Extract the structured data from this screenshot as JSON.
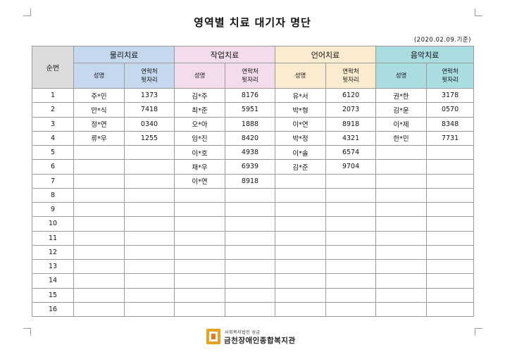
{
  "title": "영역별 치료 대기자 명단",
  "date": "(2020.02.09.기준)",
  "table": {
    "num_header": "순번",
    "categories": [
      {
        "label": "물리치료",
        "color": "#c5d8ee",
        "sub": [
          "성명",
          "연락처\n뒷자리"
        ]
      },
      {
        "label": "작업치료",
        "color": "#f3dcec",
        "sub": [
          "성명",
          "연락처\n뒷자리"
        ]
      },
      {
        "label": "언어치료",
        "color": "#fbebcf",
        "sub": [
          "성명",
          "연락처\n뒷자리"
        ]
      },
      {
        "label": "음악치료",
        "color": "#a9dde0",
        "sub": [
          "성명",
          "연락처\n뒷자리"
        ]
      }
    ],
    "rows": [
      {
        "num": "1",
        "cells": [
          "주*민",
          "1373",
          "김*주",
          "8176",
          "유*서",
          "6120",
          "권*한",
          "3178"
        ]
      },
      {
        "num": "2",
        "cells": [
          "안*식",
          "7418",
          "최*준",
          "5951",
          "박*형",
          "2073",
          "김*윤",
          "0570"
        ]
      },
      {
        "num": "3",
        "cells": [
          "정*연",
          "0340",
          "오*아",
          "1888",
          "이*연",
          "8918",
          "이*제",
          "8348"
        ]
      },
      {
        "num": "4",
        "cells": [
          "류*우",
          "1255",
          "임*진",
          "8420",
          "박*정",
          "4321",
          "한*민",
          "7731"
        ]
      },
      {
        "num": "5",
        "cells": [
          "",
          "",
          "이*호",
          "4938",
          "이*솔",
          "6574",
          "",
          ""
        ]
      },
      {
        "num": "6",
        "cells": [
          "",
          "",
          "채*우",
          "6939",
          "김*준",
          "9704",
          "",
          ""
        ]
      },
      {
        "num": "7",
        "cells": [
          "",
          "",
          "이*연",
          "8918",
          "",
          "",
          "",
          ""
        ]
      },
      {
        "num": "8",
        "cells": [
          "",
          "",
          "",
          "",
          "",
          "",
          "",
          ""
        ]
      },
      {
        "num": "9",
        "cells": [
          "",
          "",
          "",
          "",
          "",
          "",
          "",
          ""
        ]
      },
      {
        "num": "10",
        "cells": [
          "",
          "",
          "",
          "",
          "",
          "",
          "",
          ""
        ]
      },
      {
        "num": "11",
        "cells": [
          "",
          "",
          "",
          "",
          "",
          "",
          "",
          ""
        ]
      },
      {
        "num": "12",
        "cells": [
          "",
          "",
          "",
          "",
          "",
          "",
          "",
          ""
        ]
      },
      {
        "num": "13",
        "cells": [
          "",
          "",
          "",
          "",
          "",
          "",
          "",
          ""
        ]
      },
      {
        "num": "14",
        "cells": [
          "",
          "",
          "",
          "",
          "",
          "",
          "",
          ""
        ]
      },
      {
        "num": "15",
        "cells": [
          "",
          "",
          "",
          "",
          "",
          "",
          "",
          ""
        ]
      },
      {
        "num": "16",
        "cells": [
          "",
          "",
          "",
          "",
          "",
          "",
          "",
          ""
        ]
      }
    ]
  },
  "logo": {
    "subtitle": "사회복지법인 성금",
    "name": "금천장애인종합복지관",
    "icon": "welfare-center-logo",
    "colors": [
      "#e8a21d",
      "#e07a1f"
    ]
  }
}
